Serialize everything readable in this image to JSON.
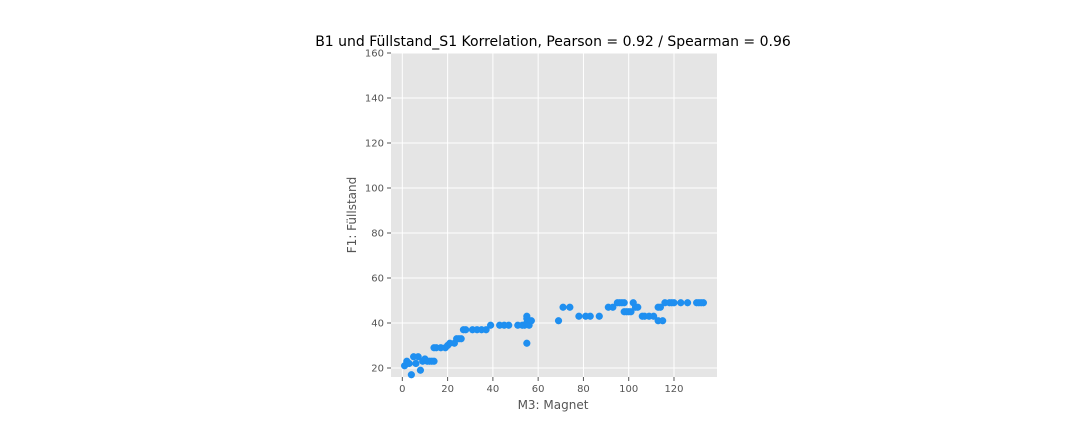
{
  "chart_data": {
    "type": "scatter",
    "title": "B1 und Füllstand_S1 Korrelation, Pearson = 0.92 / Spearman = 0.96",
    "xlabel": "M3: Magnet",
    "ylabel": "F1: Füllstand",
    "xlim": [
      -5,
      139
    ],
    "ylim": [
      16,
      160
    ],
    "xticks": [
      "0",
      "20",
      "40",
      "60",
      "80",
      "100",
      "120"
    ],
    "yticks": [
      "20",
      "40",
      "60",
      "80",
      "100",
      "120",
      "140",
      "160"
    ],
    "grid": true,
    "point_color": "#1f8ff0",
    "background_color": "#e5e5e5",
    "points": [
      [
        1,
        21
      ],
      [
        2,
        23
      ],
      [
        3,
        22
      ],
      [
        4,
        17
      ],
      [
        5,
        25
      ],
      [
        6,
        22
      ],
      [
        7,
        25
      ],
      [
        8,
        19
      ],
      [
        9,
        23
      ],
      [
        10,
        24
      ],
      [
        11,
        23
      ],
      [
        12,
        23
      ],
      [
        13,
        23
      ],
      [
        14,
        23
      ],
      [
        14,
        29
      ],
      [
        15,
        29
      ],
      [
        17,
        29
      ],
      [
        19,
        29
      ],
      [
        20,
        30
      ],
      [
        21,
        31
      ],
      [
        23,
        31
      ],
      [
        24,
        33
      ],
      [
        25,
        33
      ],
      [
        26,
        33
      ],
      [
        27,
        37
      ],
      [
        28,
        37
      ],
      [
        31,
        37
      ],
      [
        33,
        37
      ],
      [
        35,
        37
      ],
      [
        37,
        37
      ],
      [
        39,
        39
      ],
      [
        43,
        39
      ],
      [
        45,
        39
      ],
      [
        47,
        39
      ],
      [
        51,
        39
      ],
      [
        53,
        39
      ],
      [
        54,
        39
      ],
      [
        55,
        31
      ],
      [
        55,
        40
      ],
      [
        55,
        42
      ],
      [
        55,
        43
      ],
      [
        56,
        41
      ],
      [
        56,
        39
      ],
      [
        57,
        41
      ],
      [
        69,
        41
      ],
      [
        71,
        47
      ],
      [
        74,
        47
      ],
      [
        78,
        43
      ],
      [
        81,
        43
      ],
      [
        83,
        43
      ],
      [
        87,
        43
      ],
      [
        91,
        47
      ],
      [
        93,
        47
      ],
      [
        95,
        49
      ],
      [
        96,
        49
      ],
      [
        97,
        49
      ],
      [
        98,
        45
      ],
      [
        98,
        49
      ],
      [
        99,
        45
      ],
      [
        100,
        45
      ],
      [
        101,
        45
      ],
      [
        102,
        49
      ],
      [
        103,
        47
      ],
      [
        104,
        47
      ],
      [
        106,
        43
      ],
      [
        107,
        43
      ],
      [
        109,
        43
      ],
      [
        111,
        43
      ],
      [
        113,
        41
      ],
      [
        113,
        47
      ],
      [
        114,
        47
      ],
      [
        115,
        41
      ],
      [
        116,
        49
      ],
      [
        118,
        49
      ],
      [
        119,
        49
      ],
      [
        120,
        49
      ],
      [
        123,
        49
      ],
      [
        126,
        49
      ],
      [
        130,
        49
      ],
      [
        131,
        49
      ],
      [
        132,
        49
      ],
      [
        133,
        49
      ]
    ]
  }
}
